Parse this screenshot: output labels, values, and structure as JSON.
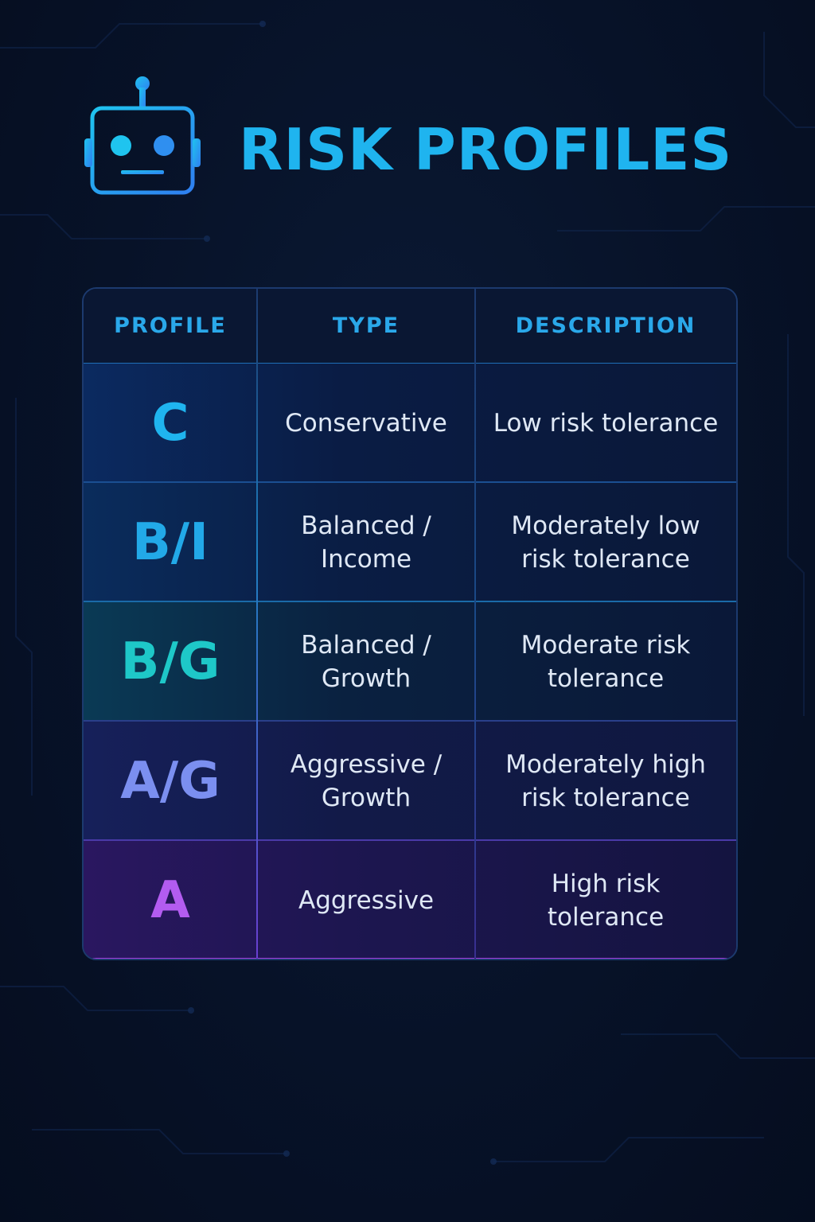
{
  "title": "RISK PROFILES",
  "icons": {
    "robot": "robot-head-icon"
  },
  "colors": {
    "title": "#1fb4ef",
    "header_text": "#2aa8ea",
    "background": "#071228",
    "cell_text": "#dfe8f5"
  },
  "table": {
    "headers": [
      "PROFILE",
      "TYPE",
      "DESCRIPTION"
    ],
    "rows": [
      {
        "profile": "C",
        "type": "Conservative",
        "description": "Low risk tolerance",
        "accent": "#1fb4ef"
      },
      {
        "profile": "B/I",
        "type": "Balanced /\nIncome",
        "description": "Moderately low\nrisk tolerance",
        "accent": "#22a9e8"
      },
      {
        "profile": "B/G",
        "type": "Balanced /\nGrowth",
        "description": "Moderate risk\ntolerance",
        "accent": "#1ec8c8"
      },
      {
        "profile": "A/G",
        "type": "Aggressive /\nGrowth",
        "description": "Moderately high\nrisk tolerance",
        "accent": "#7b8ff0"
      },
      {
        "profile": "A",
        "type": "Aggressive",
        "description": "High risk\ntolerance",
        "accent": "#b35cf0"
      }
    ]
  }
}
